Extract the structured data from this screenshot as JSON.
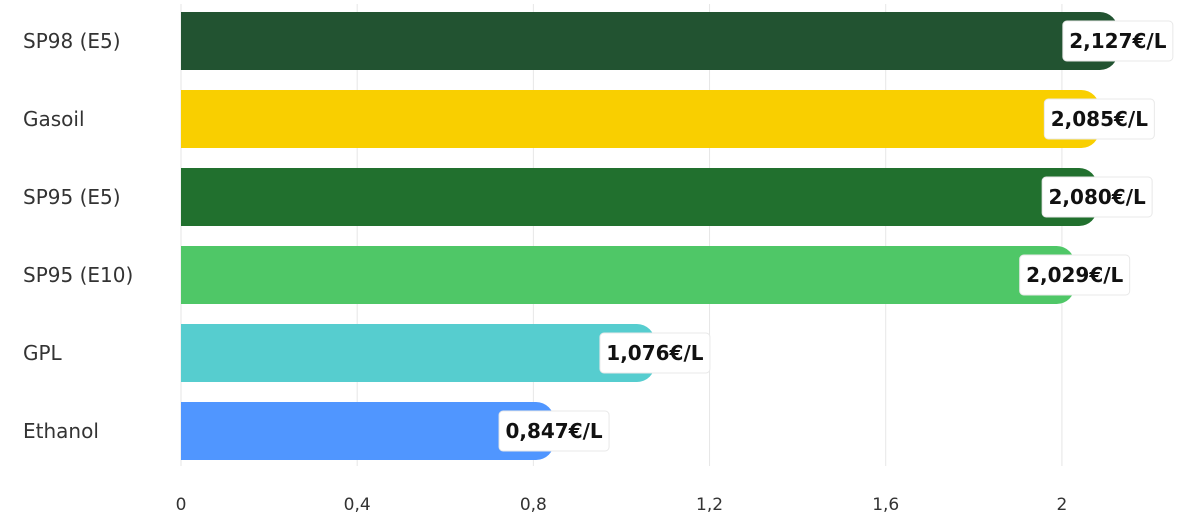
{
  "chart_data": {
    "type": "bar",
    "orientation": "horizontal",
    "categories": [
      "SP98 (E5)",
      "Gasoil",
      "SP95 (E5)",
      "SP95 (E10)",
      "GPL",
      "Ethanol"
    ],
    "values": [
      2.127,
      2.085,
      2.08,
      2.029,
      1.076,
      0.847
    ],
    "value_labels": [
      "2,127€/L",
      "2,085€/L",
      "2,080€/L",
      "2,029€/L",
      "1,076€/L",
      "0,847€/L"
    ],
    "colors": [
      "#225331",
      "#f9cf00",
      "#21702e",
      "#4fc767",
      "#56cdcf",
      "#5096ff"
    ],
    "xticks": [
      0,
      0.4,
      0.8,
      1.2,
      1.6,
      2
    ],
    "xtick_labels": [
      "0",
      "0,4",
      "0,8",
      "1,2",
      "1,6",
      "2"
    ],
    "xlim": [
      0,
      2.2
    ],
    "title": "",
    "xlabel": "",
    "ylabel": "",
    "grid": true,
    "legend": "none"
  }
}
